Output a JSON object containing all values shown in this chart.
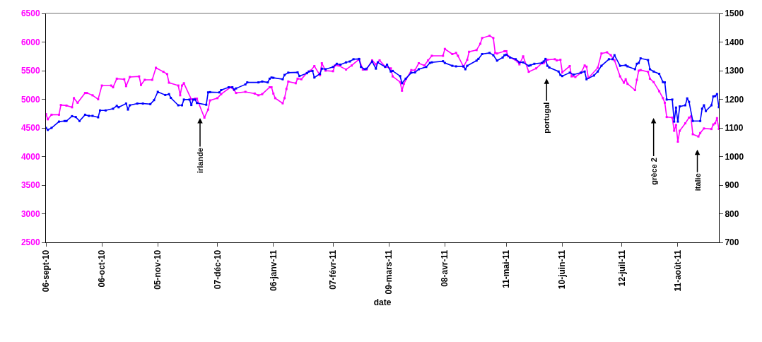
{
  "chart_data": {
    "type": "line",
    "xlabel": "date",
    "marker": "square",
    "xlim": [
      "2010-09-06",
      "2011-09-02"
    ],
    "xticks": [
      {
        "value": "2010-09-06",
        "label": "06-sept-10"
      },
      {
        "value": "2010-10-06",
        "label": "06-oct-10"
      },
      {
        "value": "2010-11-05",
        "label": "05-nov-10"
      },
      {
        "value": "2010-12-07",
        "label": "07-déc-10"
      },
      {
        "value": "2011-01-06",
        "label": "06-janv-11"
      },
      {
        "value": "2011-02-07",
        "label": "07-févr-11"
      },
      {
        "value": "2011-03-09",
        "label": "09-mars-11"
      },
      {
        "value": "2011-04-08",
        "label": "08-avr-11"
      },
      {
        "value": "2011-05-11",
        "label": "11-mai-11"
      },
      {
        "value": "2011-06-10",
        "label": "10-juin-11"
      },
      {
        "value": "2011-07-12",
        "label": "12-juil-11"
      },
      {
        "value": "2011-08-11",
        "label": "11-août-11"
      }
    ],
    "ylim": [
      2500,
      6500
    ],
    "yticks": [
      2500,
      3000,
      3500,
      4000,
      4500,
      5000,
      5500,
      6000,
      6500
    ],
    "y2lim": [
      700,
      1500
    ],
    "y2ticks": [
      700,
      800,
      900,
      1000,
      1100,
      1200,
      1300,
      1400,
      1500
    ],
    "series": [
      {
        "color": "#ff00ff",
        "x": [
          "2010-09-06",
          "2010-09-07",
          "2010-09-09",
          "2010-09-13",
          "2010-09-14",
          "2010-09-17",
          "2010-09-20",
          "2010-09-21",
          "2010-09-23",
          "2010-09-27",
          "2010-09-28",
          "2010-10-01",
          "2010-10-04",
          "2010-10-06",
          "2010-10-11",
          "2010-10-12",
          "2010-10-14",
          "2010-10-18",
          "2010-10-19",
          "2010-10-21",
          "2010-10-26",
          "2010-10-27",
          "2010-10-29",
          "2010-11-02",
          "2010-11-04",
          "2010-11-08",
          "2010-11-10",
          "2010-11-11",
          "2010-11-16",
          "2010-11-17",
          "2010-11-18",
          "2010-11-19",
          "2010-11-23",
          "2010-11-25",
          "2010-11-26",
          "2010-11-30",
          "2010-12-02",
          "2010-12-03",
          "2010-12-07",
          "2010-12-09",
          "2010-12-14",
          "2010-12-16",
          "2010-12-17",
          "2010-12-22",
          "2010-12-27",
          "2010-12-29",
          "2010-12-31",
          "2011-01-04",
          "2011-01-05",
          "2011-01-06",
          "2011-01-07",
          "2011-01-11",
          "2011-01-12",
          "2011-01-13",
          "2011-01-14",
          "2011-01-18",
          "2011-01-19",
          "2011-01-21",
          "2011-01-24",
          "2011-01-26",
          "2011-01-28",
          "2011-01-31",
          "2011-02-01",
          "2011-02-03",
          "2011-02-07",
          "2011-02-08",
          "2011-02-10",
          "2011-02-14",
          "2011-02-17",
          "2011-02-21",
          "2011-02-23",
          "2011-02-25",
          "2011-02-28",
          "2011-03-02",
          "2011-03-04",
          "2011-03-07",
          "2011-03-10",
          "2011-03-11",
          "2011-03-15",
          "2011-03-16",
          "2011-03-17",
          "2011-03-21",
          "2011-03-23",
          "2011-03-25",
          "2011-03-28",
          "2011-03-30",
          "2011-04-01",
          "2011-04-07",
          "2011-04-08",
          "2011-04-12",
          "2011-04-14",
          "2011-04-15",
          "2011-04-18",
          "2011-04-20",
          "2011-04-21",
          "2011-04-25",
          "2011-04-27",
          "2011-04-28",
          "2011-05-02",
          "2011-05-04",
          "2011-05-05",
          "2011-05-06",
          "2011-05-10",
          "2011-05-11",
          "2011-05-12",
          "2011-05-17",
          "2011-05-18",
          "2011-05-20",
          "2011-05-23",
          "2011-05-27",
          "2011-05-30",
          "2011-05-31",
          "2011-06-02",
          "2011-06-06",
          "2011-06-07",
          "2011-06-09",
          "2011-06-10",
          "2011-06-14",
          "2011-06-15",
          "2011-06-17",
          "2011-06-20",
          "2011-06-22",
          "2011-06-23",
          "2011-06-24",
          "2011-06-29",
          "2011-07-01",
          "2011-07-04",
          "2011-07-06",
          "2011-07-08",
          "2011-07-11",
          "2011-07-13",
          "2011-07-14",
          "2011-07-15",
          "2011-07-19",
          "2011-07-20",
          "2011-07-21",
          "2011-07-22",
          "2011-07-26",
          "2011-07-27",
          "2011-07-29",
          "2011-08-01",
          "2011-08-03",
          "2011-08-04",
          "2011-08-05",
          "2011-08-08",
          "2011-08-09",
          "2011-08-10",
          "2011-08-11",
          "2011-08-12",
          "2011-08-15",
          "2011-08-17",
          "2011-08-18",
          "2011-08-19",
          "2011-08-22",
          "2011-08-23",
          "2011-08-25",
          "2011-08-29",
          "2011-08-30",
          "2011-08-31",
          "2011-09-01",
          "2011-09-02"
        ],
        "values": [
          4740,
          4650,
          4730,
          4730,
          4900,
          4890,
          4860,
          5020,
          4940,
          5110,
          5110,
          5070,
          5000,
          5240,
          5240,
          5210,
          5360,
          5350,
          5230,
          5390,
          5400,
          5250,
          5340,
          5340,
          5550,
          5480,
          5440,
          5290,
          5240,
          5070,
          5240,
          5280,
          5000,
          5010,
          5010,
          4680,
          4820,
          4980,
          5020,
          5090,
          5210,
          5160,
          5110,
          5130,
          5100,
          5070,
          5090,
          5210,
          5210,
          5100,
          5020,
          4930,
          5020,
          5180,
          5310,
          5280,
          5360,
          5350,
          5460,
          5500,
          5580,
          5420,
          5630,
          5500,
          5490,
          5590,
          5590,
          5520,
          5590,
          5700,
          5520,
          5520,
          5680,
          5610,
          5680,
          5570,
          5540,
          5400,
          5300,
          5150,
          5270,
          5510,
          5510,
          5630,
          5590,
          5680,
          5760,
          5760,
          5880,
          5790,
          5810,
          5760,
          5570,
          5690,
          5830,
          5860,
          5970,
          6070,
          6110,
          6070,
          5810,
          5800,
          5840,
          5840,
          5750,
          5660,
          5610,
          5750,
          5480,
          5540,
          5630,
          5630,
          5690,
          5700,
          5680,
          5690,
          5470,
          5580,
          5400,
          5390,
          5460,
          5590,
          5570,
          5370,
          5550,
          5800,
          5820,
          5770,
          5680,
          5400,
          5290,
          5350,
          5270,
          5160,
          5340,
          5500,
          5510,
          5480,
          5360,
          5300,
          5140,
          5020,
          4940,
          4690,
          4680,
          4450,
          4550,
          4260,
          4450,
          4580,
          4680,
          4700,
          4390,
          4350,
          4410,
          4490,
          4480,
          4560,
          4580,
          4670,
          4480
        ]
      },
      {
        "color": "#0000ff",
        "axis": "y2",
        "x": [
          "2010-09-06",
          "2010-09-07",
          "2010-09-09",
          "2010-09-13",
          "2010-09-16",
          "2010-09-17",
          "2010-09-20",
          "2010-09-22",
          "2010-09-24",
          "2010-09-27",
          "2010-09-29",
          "2010-10-01",
          "2010-10-04",
          "2010-10-05",
          "2010-10-08",
          "2010-10-12",
          "2010-10-14",
          "2010-10-15",
          "2010-10-19",
          "2010-10-20",
          "2010-10-21",
          "2010-10-25",
          "2010-10-28",
          "2010-11-01",
          "2010-11-03",
          "2010-11-05",
          "2010-11-09",
          "2010-11-11",
          "2010-11-12",
          "2010-11-16",
          "2010-11-18",
          "2010-11-19",
          "2010-11-22",
          "2010-11-23",
          "2010-11-24",
          "2010-11-25",
          "2010-11-26",
          "2010-12-01",
          "2010-12-02",
          "2010-12-03",
          "2010-12-08",
          "2010-12-09",
          "2010-12-13",
          "2010-12-15",
          "2010-12-16",
          "2010-12-17",
          "2010-12-22",
          "2010-12-23",
          "2010-12-29",
          "2010-12-31",
          "2011-01-03",
          "2011-01-04",
          "2011-01-05",
          "2011-01-06",
          "2011-01-11",
          "2011-01-12",
          "2011-01-14",
          "2011-01-19",
          "2011-01-20",
          "2011-01-24",
          "2011-01-25",
          "2011-01-27",
          "2011-01-28",
          "2011-01-31",
          "2011-02-01",
          "2011-02-03",
          "2011-02-07",
          "2011-02-09",
          "2011-02-11",
          "2011-02-14",
          "2011-02-16",
          "2011-02-18",
          "2011-02-21",
          "2011-02-22",
          "2011-02-24",
          "2011-02-25",
          "2011-02-28",
          "2011-03-02",
          "2011-03-03",
          "2011-03-07",
          "2011-03-08",
          "2011-03-10",
          "2011-03-11",
          "2011-03-15",
          "2011-03-16",
          "2011-03-18",
          "2011-03-21",
          "2011-03-23",
          "2011-03-25",
          "2011-03-29",
          "2011-03-31",
          "2011-04-01",
          "2011-04-07",
          "2011-04-08",
          "2011-04-12",
          "2011-04-14",
          "2011-04-18",
          "2011-04-19",
          "2011-04-20",
          "2011-04-25",
          "2011-04-26",
          "2011-04-28",
          "2011-05-02",
          "2011-05-04",
          "2011-05-06",
          "2011-05-09",
          "2011-05-10",
          "2011-05-11",
          "2011-05-13",
          "2011-05-16",
          "2011-05-18",
          "2011-05-20",
          "2011-05-23",
          "2011-05-24",
          "2011-05-26",
          "2011-05-30",
          "2011-05-31",
          "2011-06-01",
          "2011-06-02",
          "2011-06-03",
          "2011-06-08",
          "2011-06-09",
          "2011-06-10",
          "2011-06-14",
          "2011-06-16",
          "2011-06-20",
          "2011-06-22",
          "2011-06-23",
          "2011-06-27",
          "2011-06-29",
          "2011-07-01",
          "2011-07-05",
          "2011-07-07",
          "2011-07-08",
          "2011-07-11",
          "2011-07-14",
          "2011-07-15",
          "2011-07-19",
          "2011-07-20",
          "2011-07-21",
          "2011-07-22",
          "2011-07-26",
          "2011-07-27",
          "2011-07-29",
          "2011-08-01",
          "2011-08-03",
          "2011-08-04",
          "2011-08-05",
          "2011-08-08",
          "2011-08-09",
          "2011-08-10",
          "2011-08-11",
          "2011-08-12",
          "2011-08-15",
          "2011-08-16",
          "2011-08-17",
          "2011-08-19",
          "2011-08-23",
          "2011-08-24",
          "2011-08-25",
          "2011-08-26",
          "2011-08-29",
          "2011-08-30",
          "2011-08-31",
          "2011-09-01",
          "2011-09-02"
        ],
        "values": [
          1100,
          1093,
          1100,
          1122,
          1124,
          1124,
          1141,
          1138,
          1124,
          1146,
          1142,
          1142,
          1137,
          1161,
          1161,
          1167,
          1177,
          1172,
          1185,
          1164,
          1179,
          1185,
          1185,
          1183,
          1197,
          1226,
          1215,
          1218,
          1205,
          1179,
          1179,
          1199,
          1199,
          1180,
          1199,
          1199,
          1187,
          1181,
          1224,
          1225,
          1224,
          1232,
          1242,
          1242,
          1234,
          1238,
          1252,
          1259,
          1259,
          1262,
          1259,
          1272,
          1276,
          1275,
          1270,
          1285,
          1293,
          1294,
          1281,
          1291,
          1297,
          1299,
          1276,
          1289,
          1307,
          1305,
          1313,
          1324,
          1321,
          1329,
          1332,
          1340,
          1341,
          1313,
          1305,
          1307,
          1332,
          1307,
          1329,
          1313,
          1321,
          1297,
          1299,
          1281,
          1256,
          1272,
          1293,
          1294,
          1305,
          1313,
          1327,
          1329,
          1333,
          1327,
          1317,
          1315,
          1315,
          1305,
          1317,
          1335,
          1341,
          1358,
          1362,
          1354,
          1335,
          1346,
          1354,
          1356,
          1346,
          1340,
          1329,
          1329,
          1317,
          1319,
          1324,
          1327,
          1332,
          1341,
          1317,
          1311,
          1297,
          1285,
          1281,
          1293,
          1286,
          1293,
          1297,
          1270,
          1283,
          1297,
          1317,
          1340,
          1340,
          1354,
          1317,
          1319,
          1315,
          1305,
          1324,
          1327,
          1343,
          1337,
          1305,
          1297,
          1289,
          1260,
          1259,
          1199,
          1199,
          1122,
          1171,
          1122,
          1175,
          1179,
          1203,
          1191,
          1124,
          1124,
          1167,
          1179,
          1159,
          1179,
          1210,
          1211,
          1218,
          1172
        ]
      }
    ],
    "annotations": [
      "irlande",
      "portugal",
      "grèce 2",
      "italie"
    ]
  }
}
